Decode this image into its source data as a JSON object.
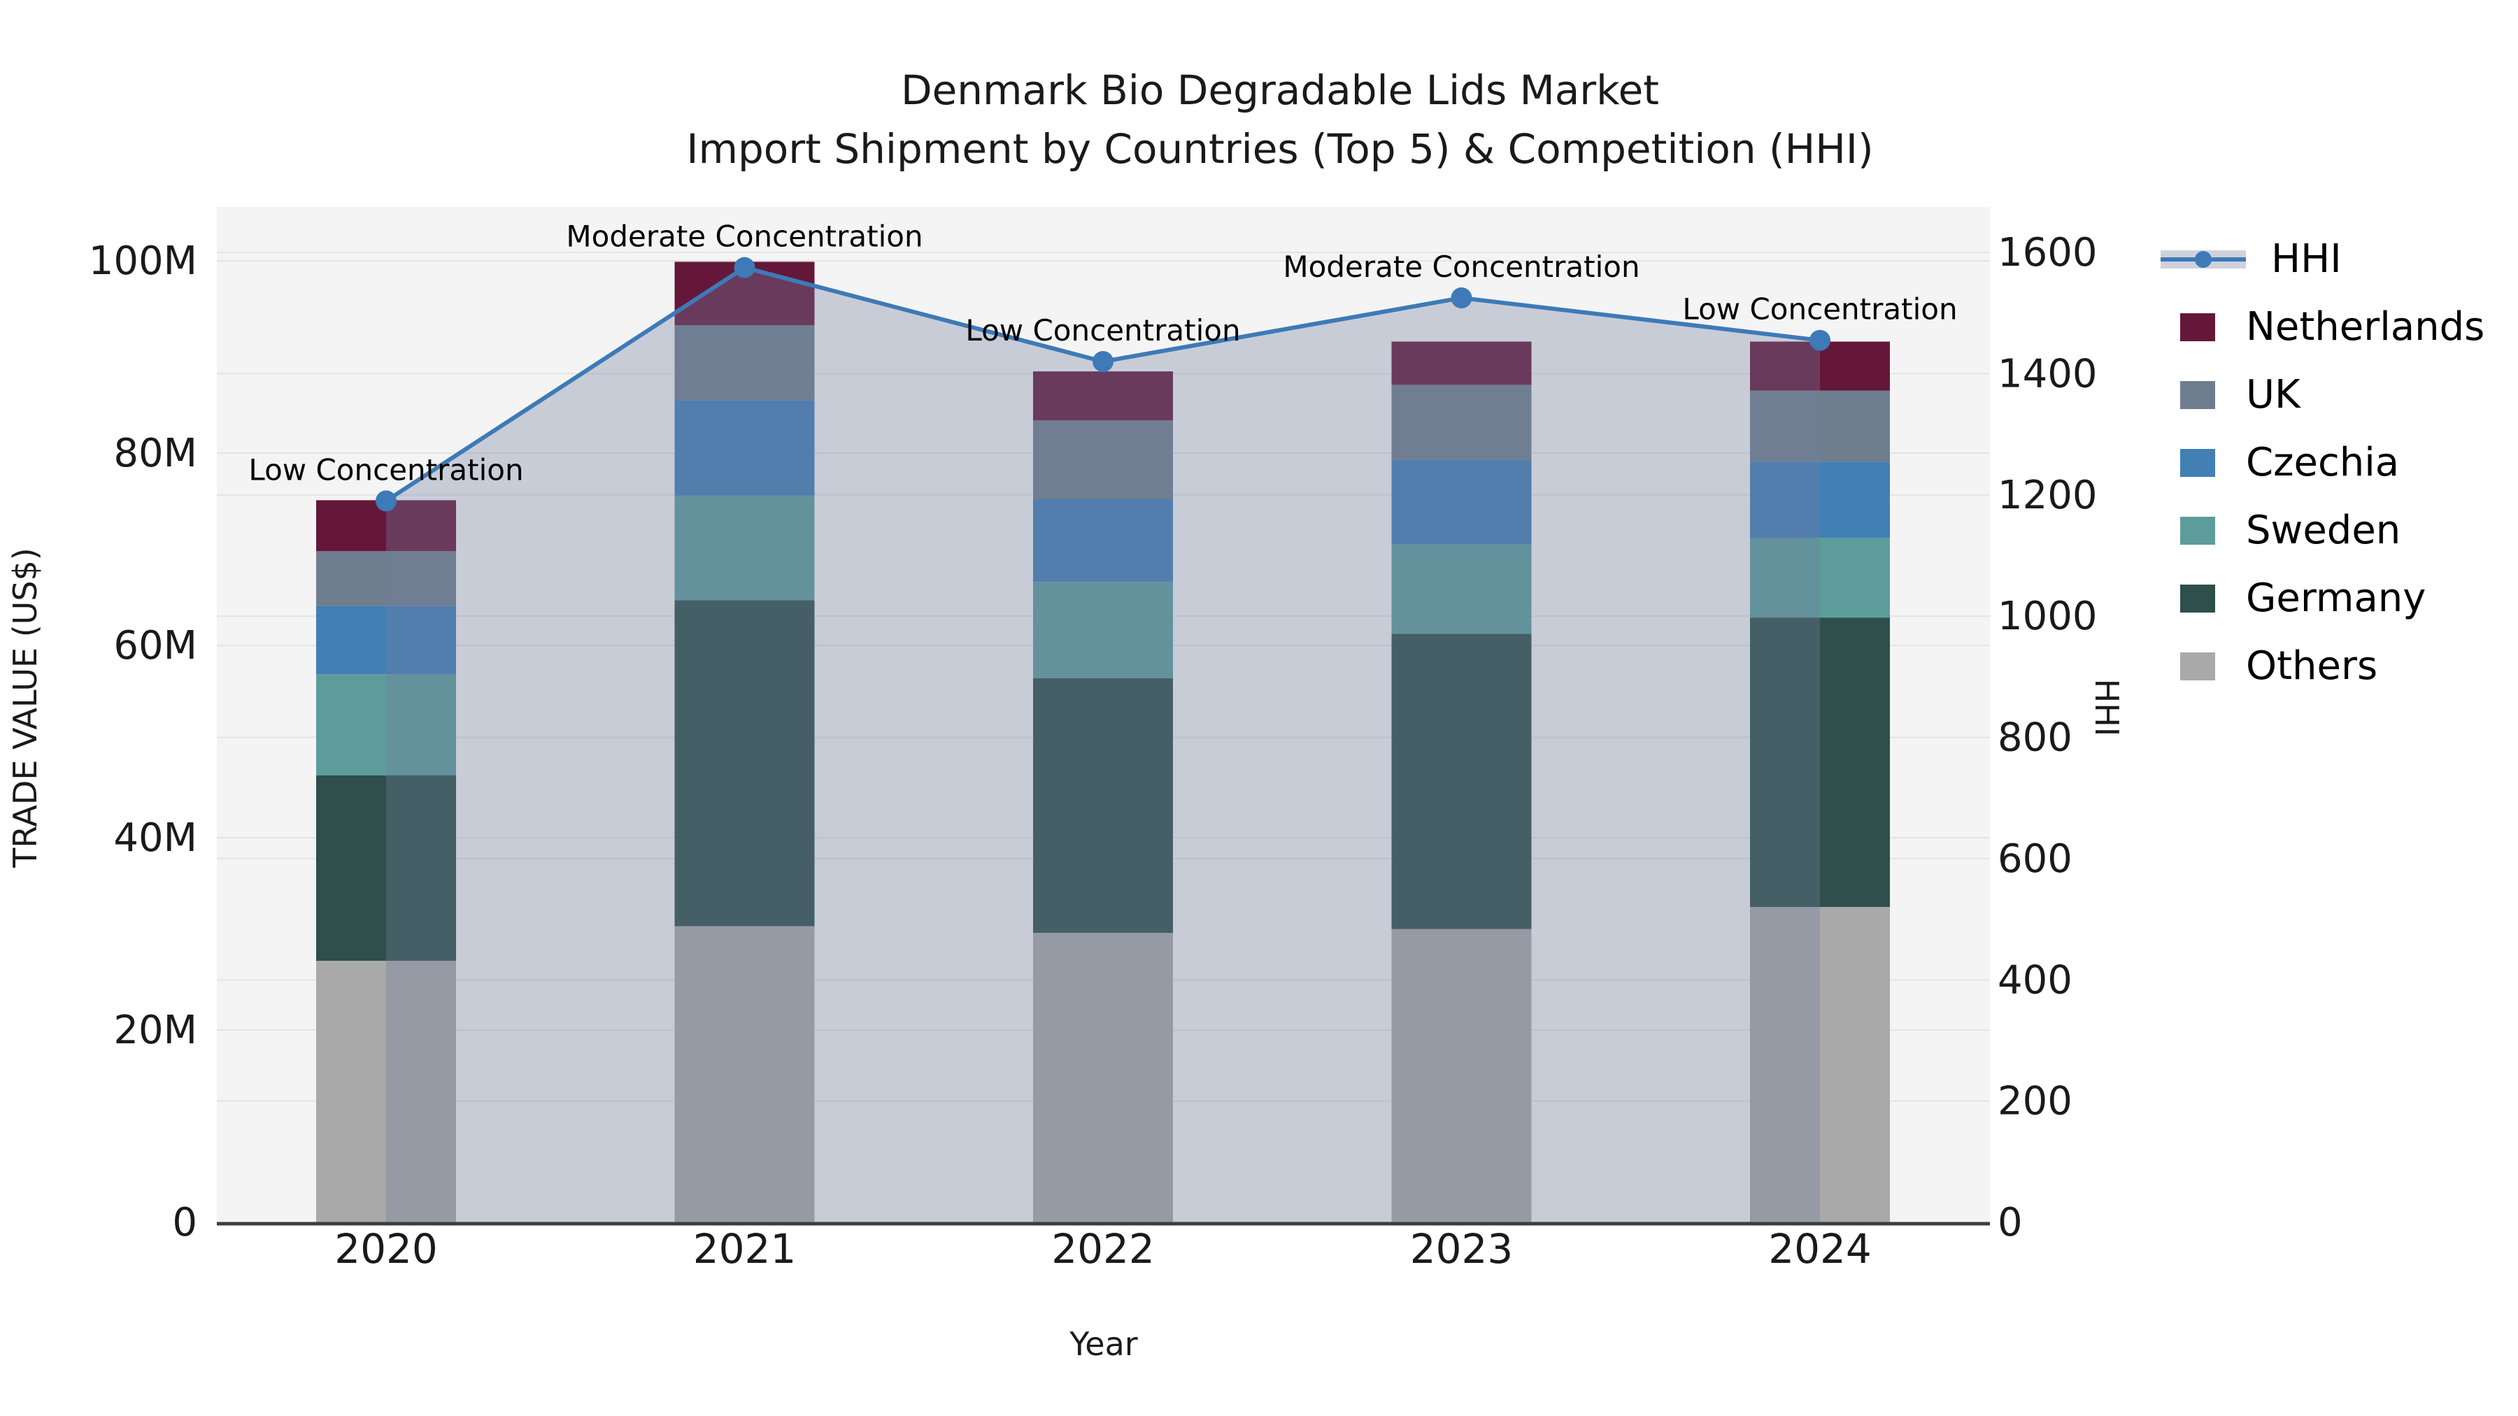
{
  "title": {
    "line1": "Denmark Bio Degradable Lids Market",
    "line2": "Import Shipment by Countries (Top 5) & Competition (HHI)"
  },
  "axes": {
    "y_left": {
      "label": "TRADE VALUE (US$)",
      "max": 100,
      "ticks": [
        {
          "v": 0,
          "label": "0"
        },
        {
          "v": 20,
          "label": "20M"
        },
        {
          "v": 40,
          "label": "40M"
        },
        {
          "v": 60,
          "label": "60M"
        },
        {
          "v": 80,
          "label": "80M"
        },
        {
          "v": 100,
          "label": "100M"
        }
      ]
    },
    "y_right": {
      "label": "HHI",
      "max": 1600,
      "ticks": [
        {
          "v": 0,
          "label": "0"
        },
        {
          "v": 200,
          "label": "200"
        },
        {
          "v": 400,
          "label": "400"
        },
        {
          "v": 600,
          "label": "600"
        },
        {
          "v": 800,
          "label": "800"
        },
        {
          "v": 1000,
          "label": "1000"
        },
        {
          "v": 1200,
          "label": "1200"
        },
        {
          "v": 1400,
          "label": "1400"
        },
        {
          "v": 1600,
          "label": "1600"
        }
      ]
    },
    "x": {
      "label": "Year",
      "categories": [
        "2020",
        "2021",
        "2022",
        "2023",
        "2024"
      ]
    }
  },
  "legend": [
    "HHI",
    "Netherlands",
    "UK",
    "Czechia",
    "Sweden",
    "Germany",
    "Others"
  ],
  "chart_data": {
    "type": "combo: stacked-bar + area-line",
    "unit": "million US$",
    "categories": [
      "2020",
      "2021",
      "2022",
      "2023",
      "2024"
    ],
    "series": [
      {
        "name": "Others",
        "color": "#a9a9a9",
        "values": [
          27.2,
          30.8,
          30.1,
          30.5,
          32.8
        ]
      },
      {
        "name": "Germany",
        "color": "#2e4f4b",
        "values": [
          19.3,
          33.9,
          26.5,
          30.7,
          30.1
        ]
      },
      {
        "name": "Sweden",
        "color": "#5c9d9c",
        "values": [
          10.5,
          10.9,
          10.0,
          9.3,
          8.3
        ]
      },
      {
        "name": "Czechia",
        "color": "#417fb5",
        "values": [
          7.1,
          9.9,
          8.6,
          8.8,
          7.9
        ]
      },
      {
        "name": "UK",
        "color": "#6f7e8e",
        "values": [
          5.7,
          7.8,
          8.2,
          7.8,
          7.4
        ]
      },
      {
        "name": "Netherlands",
        "color": "#65173a",
        "values": [
          5.3,
          6.6,
          5.1,
          4.5,
          5.1
        ]
      }
    ],
    "line_series": {
      "name": "HHI",
      "axis": "right",
      "color": "#3d7ab7",
      "area_fill": "rgba(113,126,158,0.34)",
      "values": [
        1190,
        1575,
        1420,
        1525,
        1455
      ]
    },
    "annotations": [
      "Low Concentration",
      "Moderate Concentration",
      "Low Concentration",
      "Moderate Concentration",
      "Low Concentration"
    ],
    "ylim_left": [
      0,
      100
    ],
    "ylim_right": [
      0,
      1600
    ],
    "grid": true,
    "legend_position": "right"
  },
  "colors": {
    "plot_bg": "#f4f4f4",
    "grid": "#e4e4e4",
    "spine": "#3d3d3d",
    "hhi_line": "#3d7ab7",
    "hhi_band": "#ced2dd"
  }
}
